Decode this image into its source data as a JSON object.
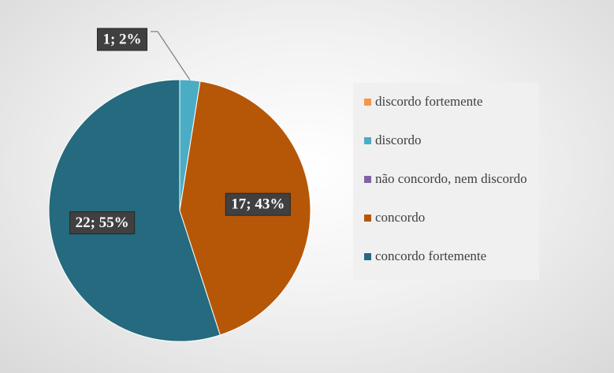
{
  "chart_data": {
    "type": "pie",
    "categories": [
      "discordo fortemente",
      "discordo",
      "não concordo, nem discordo",
      "concordo",
      "concordo fortemente"
    ],
    "values": [
      0,
      1,
      0,
      17,
      22
    ],
    "value_labels": [
      null,
      "1; 2%",
      null,
      "17; 43%",
      "22; 55%"
    ],
    "colors": [
      "#f79646",
      "#4bacc6",
      "#8064a2",
      "#b65708",
      "#256a7e"
    ],
    "legend": "right"
  }
}
